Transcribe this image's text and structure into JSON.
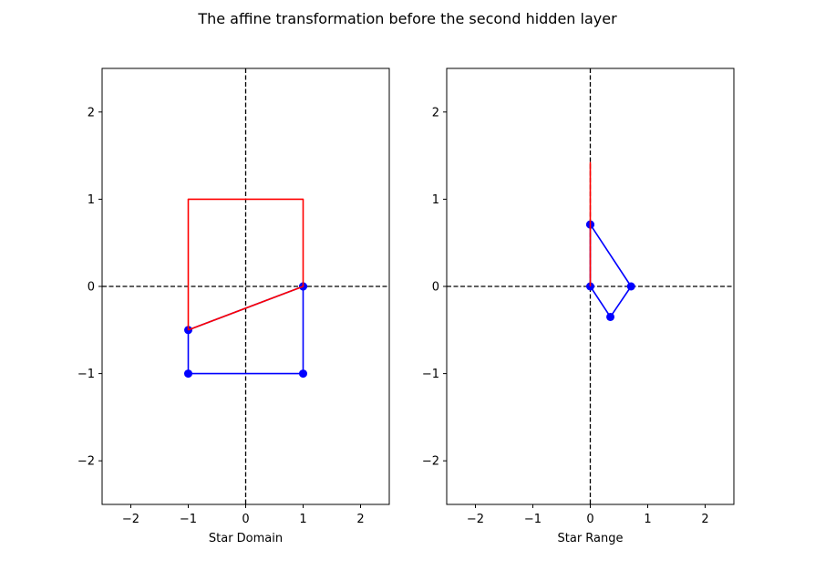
{
  "figure": {
    "title": "The affine transformation before the second hidden layer"
  },
  "chart_data": [
    {
      "type": "line",
      "xlabel": "Star Domain",
      "ylabel": "",
      "xlim": [
        -2.5,
        2.5
      ],
      "ylim": [
        -2.5,
        2.5
      ],
      "xticks": [
        -2,
        -1,
        0,
        1,
        2
      ],
      "yticks": [
        -2,
        -1,
        0,
        1,
        2
      ],
      "grid": false,
      "reference_lines": [
        {
          "orientation": "vertical",
          "value": 0,
          "style": "dashed",
          "color": "#000000"
        },
        {
          "orientation": "horizontal",
          "value": 0,
          "style": "dashed",
          "color": "#000000"
        }
      ],
      "series": [
        {
          "color": "#0000ff",
          "markers": true,
          "closed": true,
          "points": [
            [
              1,
              0
            ],
            [
              1,
              -1
            ],
            [
              -1,
              -1
            ],
            [
              -1,
              -0.5
            ],
            [
              1,
              0
            ]
          ]
        },
        {
          "color": "#ff0000",
          "markers": false,
          "closed": true,
          "points": [
            [
              -1,
              -0.5
            ],
            [
              1,
              0
            ],
            [
              1,
              1
            ],
            [
              -1,
              1
            ],
            [
              -1,
              -0.5
            ]
          ]
        }
      ]
    },
    {
      "type": "line",
      "xlabel": "Star Range",
      "ylabel": "",
      "xlim": [
        -2.5,
        2.5
      ],
      "ylim": [
        -2.5,
        2.5
      ],
      "xticks": [
        -2,
        -1,
        0,
        1,
        2
      ],
      "yticks": [
        -2,
        -1,
        0,
        1,
        2
      ],
      "grid": false,
      "reference_lines": [
        {
          "orientation": "vertical",
          "value": 0,
          "style": "dashed",
          "color": "#000000"
        },
        {
          "orientation": "horizontal",
          "value": 0,
          "style": "dashed",
          "color": "#000000"
        }
      ],
      "series": [
        {
          "color": "#0000ff",
          "markers": true,
          "closed": true,
          "points": [
            [
              0,
              0.71
            ],
            [
              0.71,
              0
            ],
            [
              0.35,
              -0.35
            ],
            [
              0,
              0
            ],
            [
              0,
              0.71
            ]
          ]
        },
        {
          "color": "#ff0000",
          "markers": false,
          "closed": true,
          "points": [
            [
              0,
              0
            ],
            [
              0,
              1.42
            ],
            [
              0,
              0
            ]
          ]
        }
      ]
    }
  ]
}
